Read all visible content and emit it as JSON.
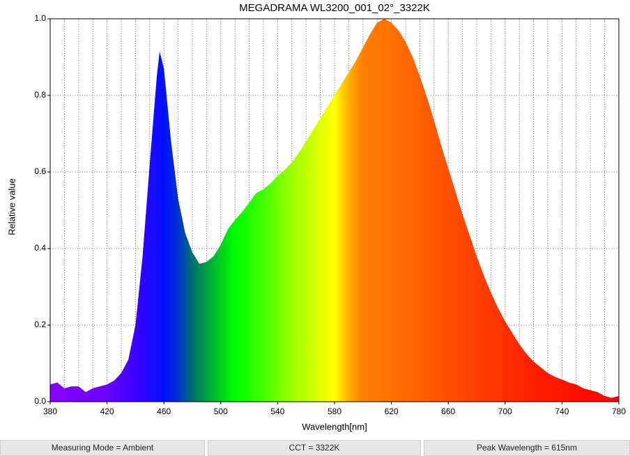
{
  "chart_data": {
    "type": "area",
    "title": "MEGADRAMA WL3200_001_02°_3322K",
    "x_label": "Wavelength[nm]",
    "y_label": "Relative value",
    "x": [
      380,
      385,
      390,
      395,
      400,
      405,
      410,
      415,
      420,
      425,
      430,
      435,
      440,
      445,
      450,
      455,
      457,
      460,
      465,
      470,
      475,
      480,
      485,
      490,
      495,
      500,
      505,
      510,
      515,
      520,
      525,
      530,
      535,
      540,
      545,
      550,
      555,
      560,
      565,
      570,
      575,
      580,
      585,
      590,
      595,
      600,
      605,
      610,
      615,
      620,
      625,
      630,
      635,
      640,
      645,
      650,
      655,
      660,
      665,
      670,
      675,
      680,
      685,
      690,
      695,
      700,
      705,
      710,
      715,
      720,
      725,
      730,
      735,
      740,
      745,
      750,
      755,
      760,
      765,
      770,
      775,
      780
    ],
    "values": [
      0.045,
      0.05,
      0.035,
      0.04,
      0.04,
      0.025,
      0.035,
      0.04,
      0.045,
      0.055,
      0.075,
      0.11,
      0.2,
      0.38,
      0.62,
      0.85,
      0.915,
      0.87,
      0.68,
      0.53,
      0.44,
      0.39,
      0.36,
      0.365,
      0.38,
      0.41,
      0.45,
      0.475,
      0.495,
      0.52,
      0.545,
      0.555,
      0.57,
      0.59,
      0.605,
      0.625,
      0.65,
      0.68,
      0.71,
      0.74,
      0.77,
      0.8,
      0.83,
      0.86,
      0.89,
      0.925,
      0.96,
      0.99,
      1.0,
      0.99,
      0.97,
      0.94,
      0.9,
      0.85,
      0.795,
      0.735,
      0.67,
      0.61,
      0.55,
      0.49,
      0.435,
      0.38,
      0.33,
      0.285,
      0.245,
      0.21,
      0.18,
      0.15,
      0.125,
      0.105,
      0.09,
      0.075,
      0.065,
      0.058,
      0.05,
      0.045,
      0.035,
      0.03,
      0.025,
      0.015,
      0.01,
      0.015
    ],
    "xlim": [
      380,
      780
    ],
    "ylim": [
      0,
      1
    ],
    "xticks": [
      380,
      420,
      460,
      500,
      540,
      580,
      620,
      660,
      700,
      740,
      780
    ],
    "xgrid": [
      390,
      400,
      410,
      420,
      430,
      440,
      450,
      460,
      470,
      480,
      490,
      500,
      510,
      520,
      530,
      540,
      550,
      560,
      570,
      580,
      590,
      600,
      610,
      620,
      630,
      640,
      650,
      660,
      670,
      680,
      690,
      700,
      710,
      720,
      730,
      740,
      750,
      760,
      770
    ],
    "yticks": [
      {
        "value": 0,
        "label": "0.0"
      },
      0.2,
      0.4,
      0.6,
      0.8,
      {
        "value": 1,
        "label": "1.0"
      }
    ],
    "grid": true
  },
  "status_bar": [
    "Measuring Mode = Ambient",
    "CCT = 3322K",
    "Peak Wavelength = 615nm"
  ]
}
